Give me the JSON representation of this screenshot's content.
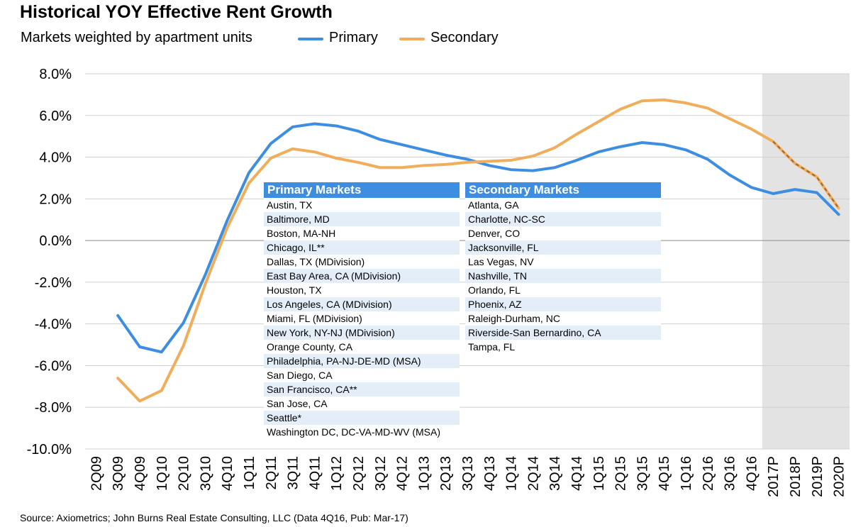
{
  "title": "Historical YOY Effective Rent Growth",
  "subtitle": "Markets weighted by apartment units",
  "source": "Source: Axiometrics; John Burns Real Estate Consulting, LLC (Data 4Q16, Pub: Mar-17)",
  "colors": {
    "primary": "#3d8ee0",
    "secondary": "#f0ae5c",
    "forecast_secondary": "#a0682c",
    "forecast_shade": "#e3e3e3",
    "table_header": "#3d8ee0",
    "table_alt_row": "#e4eef9"
  },
  "chart_data": {
    "type": "line",
    "categories": [
      "2Q09",
      "3Q09",
      "4Q09",
      "1Q10",
      "2Q10",
      "3Q10",
      "4Q10",
      "1Q11",
      "2Q11",
      "3Q11",
      "4Q11",
      "1Q12",
      "2Q12",
      "3Q12",
      "4Q12",
      "1Q13",
      "2Q13",
      "3Q13",
      "4Q13",
      "1Q14",
      "2Q14",
      "3Q14",
      "4Q14",
      "1Q15",
      "2Q15",
      "3Q15",
      "4Q15",
      "1Q16",
      "2Q16",
      "3Q16",
      "4Q16",
      "2017P",
      "2018P",
      "2019P",
      "2020P"
    ],
    "y_tick_labels": [
      "8.0%",
      "6.0%",
      "4.0%",
      "2.0%",
      "0.0%",
      "-2.0%",
      "-4.0%",
      "-6.0%",
      "-8.0%",
      "-10.0%"
    ],
    "ylim": [
      -10,
      8
    ],
    "y_ticks": [
      8,
      6,
      4,
      2,
      0,
      -2,
      -4,
      -6,
      -8,
      -10
    ],
    "forecast_start_category": "2017P",
    "series": [
      {
        "name": "Primary",
        "values": [
          null,
          -3.6,
          -5.1,
          -5.35,
          -3.95,
          -1.65,
          0.95,
          3.25,
          4.65,
          5.45,
          5.6,
          5.5,
          5.25,
          4.85,
          4.6,
          4.35,
          4.1,
          3.9,
          3.6,
          3.4,
          3.35,
          3.5,
          3.85,
          4.25,
          4.5,
          4.7,
          4.6,
          4.35,
          3.9,
          3.15,
          2.55,
          2.25,
          2.45,
          2.3,
          1.25
        ]
      },
      {
        "name": "Secondary",
        "values": [
          null,
          -6.6,
          -7.7,
          -7.2,
          -5.05,
          -2.1,
          0.6,
          2.75,
          3.95,
          4.4,
          4.25,
          3.95,
          3.75,
          3.5,
          3.5,
          3.6,
          3.65,
          3.75,
          3.8,
          3.85,
          4.05,
          4.45,
          5.1,
          5.7,
          6.3,
          6.7,
          6.75,
          6.6,
          6.35,
          5.85,
          5.35,
          4.75,
          3.7,
          3.05,
          1.55
        ]
      }
    ]
  },
  "tables": {
    "primary": {
      "header": "Primary Markets",
      "rows": [
        "Austin, TX",
        "Baltimore, MD",
        "Boston, MA-NH",
        "Chicago, IL**",
        "Dallas, TX (MDivision)",
        "East Bay Area, CA (MDivision)",
        "Houston, TX",
        "Los Angeles, CA (MDivision)",
        "Miami, FL (MDivision)",
        "New York, NY-NJ (MDivision)",
        "Orange County, CA",
        "Philadelphia, PA-NJ-DE-MD (MSA)",
        "San Diego, CA",
        "San Francisco, CA**",
        "San Jose, CA",
        "Seattle*",
        "Washington DC, DC-VA-MD-WV (MSA)"
      ]
    },
    "secondary": {
      "header": "Secondary Markets",
      "rows": [
        "Atlanta, GA",
        "Charlotte, NC-SC",
        "Denver, CO",
        "Jacksonville, FL",
        "Las Vegas, NV",
        "Nashville, TN",
        "Orlando, FL",
        "Phoenix, AZ",
        "Raleigh-Durham, NC",
        "Riverside-San Bernardino, CA",
        "Tampa, FL"
      ]
    }
  }
}
